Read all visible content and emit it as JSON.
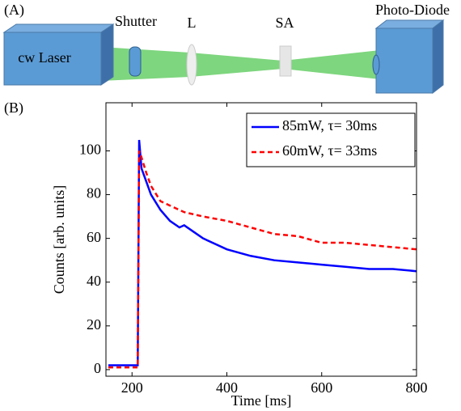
{
  "diagram": {
    "label": "(A)",
    "laser": "cw Laser",
    "shutter": "Shutter",
    "lens": "L",
    "absorber": "SA",
    "detector": "Photo-Diode"
  },
  "chart_data": {
    "type": "line",
    "panel_label": "(B)",
    "xlabel": "Time [ms]",
    "ylabel": "Counts [arb. units]",
    "x": [
      150,
      180,
      205,
      212,
      215,
      220,
      230,
      240,
      260,
      280,
      300,
      310,
      330,
      350,
      400,
      450,
      500,
      550,
      600,
      650,
      700,
      750,
      800
    ],
    "series": [
      {
        "name": "85mW, τ= 30ms",
        "color": "#0000ff",
        "linestyle": "solid",
        "values": [
          2,
          2,
          2,
          2,
          105,
          92,
          86,
          80,
          73,
          68,
          65,
          66,
          63,
          60,
          55,
          52,
          50,
          49,
          48,
          47,
          46,
          46,
          45
        ]
      },
      {
        "name": "60mW, τ= 33ms",
        "color": "#ff0000",
        "linestyle": "dashed",
        "values": [
          1,
          1,
          1,
          1,
          100,
          97,
          90,
          84,
          77,
          75,
          73,
          72,
          71,
          70,
          68,
          65,
          62,
          61,
          58,
          58,
          57,
          56,
          55
        ]
      }
    ],
    "xlim": [
      145,
      800
    ],
    "ylim": [
      -3,
      122
    ],
    "xticks": [
      200,
      400,
      600,
      800
    ],
    "yticks": [
      0,
      20,
      40,
      60,
      80,
      100
    ],
    "grid": false,
    "legend": "upper right"
  }
}
